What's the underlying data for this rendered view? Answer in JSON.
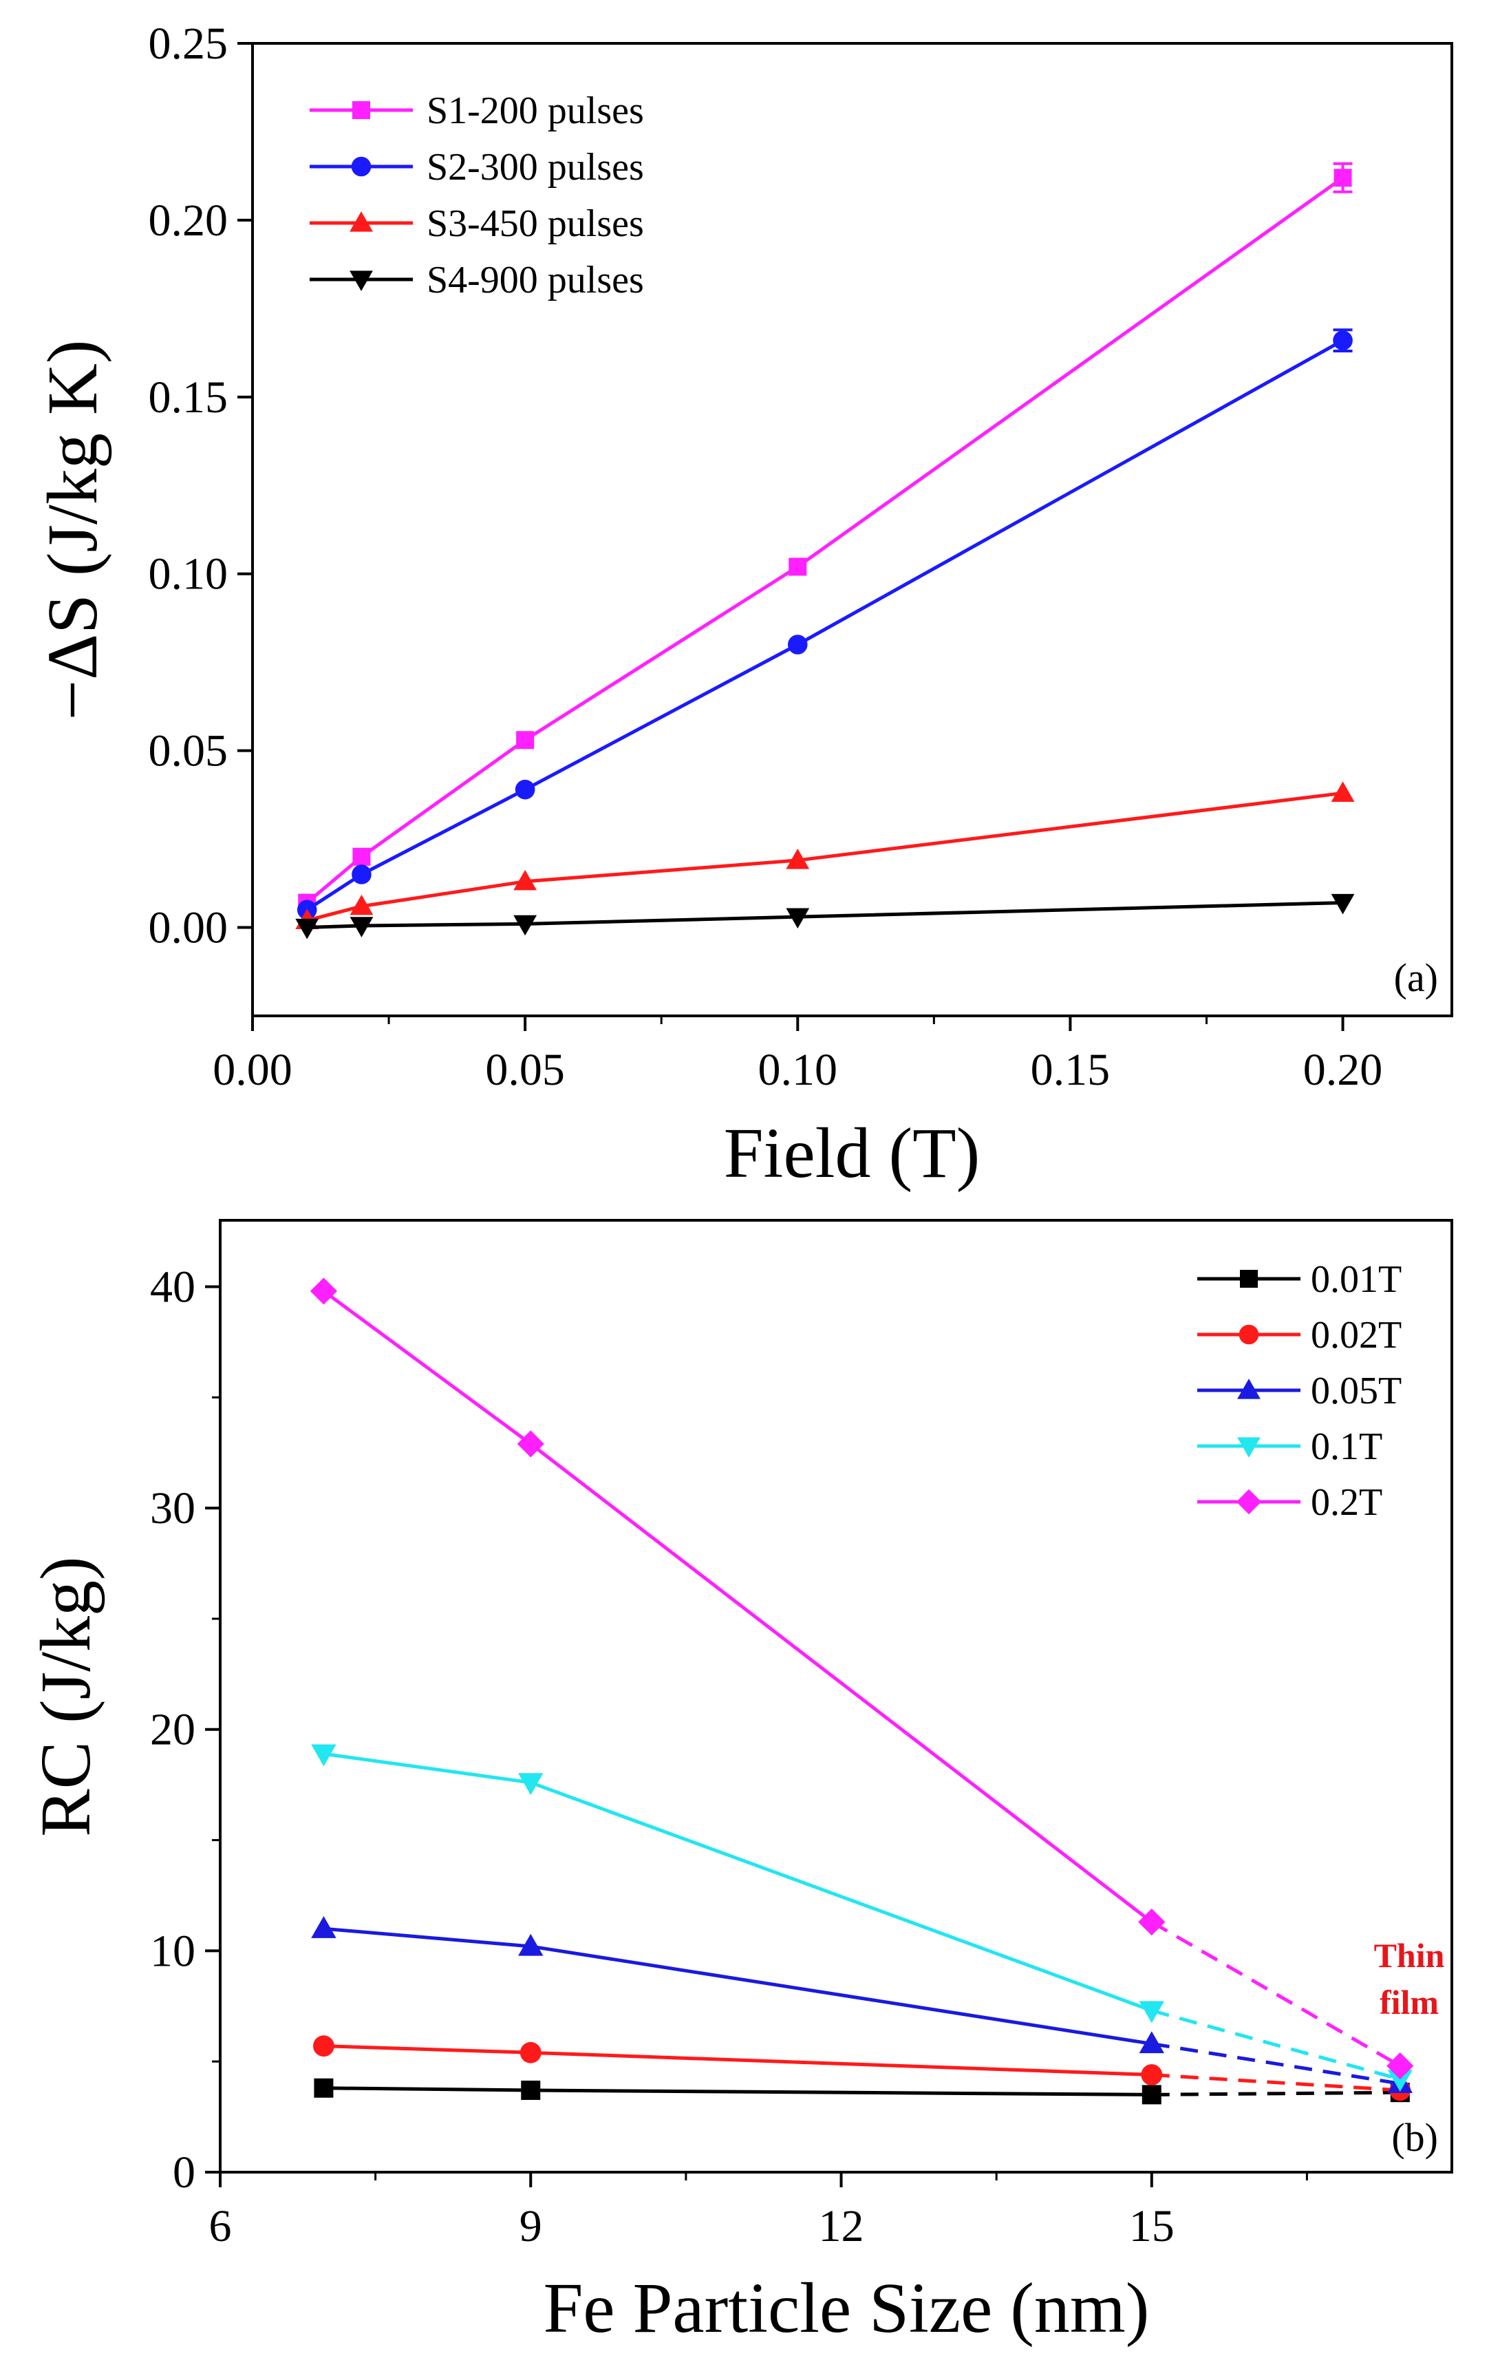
{
  "figure": {
    "panels": [
      "(a)",
      "(b)"
    ]
  },
  "chart_data": [
    {
      "type": "line",
      "panel_label": "(a)",
      "title": "",
      "xlabel": "Field (T)",
      "ylabel": "−ΔS (J/kg K)",
      "xlim": [
        0.0,
        0.22
      ],
      "ylim": [
        -0.025,
        0.25
      ],
      "xticks": [
        "0.00",
        "0.05",
        "0.10",
        "0.15",
        "0.20"
      ],
      "yticks": [
        "0.00",
        "0.05",
        "0.10",
        "0.15",
        "0.20",
        "0.25"
      ],
      "legend_position": "top-left",
      "x": [
        0.01,
        0.02,
        0.05,
        0.1,
        0.2
      ],
      "series": [
        {
          "name": "S1-200 pulses",
          "marker": "square",
          "color": "#ff20ff",
          "values": [
            0.007,
            0.02,
            0.053,
            0.102,
            0.212
          ],
          "error": [
            0,
            0,
            0,
            0,
            0.004
          ]
        },
        {
          "name": "S2-300 pulses",
          "marker": "circle",
          "color": "#1a1aff",
          "values": [
            0.005,
            0.015,
            0.039,
            0.08,
            0.166
          ],
          "error": [
            0,
            0,
            0,
            0,
            0.003
          ]
        },
        {
          "name": "S3-450 pulses",
          "marker": "triangle-up",
          "color": "#ff1a1a",
          "values": [
            0.002,
            0.006,
            0.013,
            0.019,
            0.038
          ],
          "error": [
            0,
            0,
            0,
            0,
            0
          ]
        },
        {
          "name": "S4-900 pulses",
          "marker": "triangle-down",
          "color": "#000000",
          "values": [
            0.0,
            0.0005,
            0.001,
            0.003,
            0.007
          ],
          "error": [
            0,
            0,
            0,
            0,
            0
          ]
        }
      ]
    },
    {
      "type": "line",
      "panel_label": "(b)",
      "title": "",
      "xlabel": "Fe Particle Size (nm)",
      "ylabel": "RC (J/kg)",
      "xlim": [
        6,
        17.9
      ],
      "ylim": [
        0,
        43
      ],
      "xticks": [
        "6",
        "9",
        "12",
        "15"
      ],
      "yticks": [
        "0",
        "10",
        "20",
        "30",
        "40"
      ],
      "legend_position": "top-right",
      "annotation": [
        "Thin",
        "film"
      ],
      "x": [
        7,
        9,
        15
      ],
      "x_thin_film": 17.4,
      "series": [
        {
          "name": "0.01T",
          "marker": "square",
          "color": "#000000",
          "values": [
            3.8,
            3.7,
            3.5
          ],
          "thin_film": 3.6
        },
        {
          "name": "0.02T",
          "marker": "circle",
          "color": "#ff1a1a",
          "values": [
            5.7,
            5.4,
            4.4
          ],
          "thin_film": 3.7
        },
        {
          "name": "0.05T",
          "marker": "triangle-up",
          "color": "#1a1ae0",
          "values": [
            11.0,
            10.2,
            5.8
          ],
          "thin_film": 4.0
        },
        {
          "name": "0.1T",
          "marker": "triangle-down",
          "color": "#22e6f0",
          "values": [
            18.9,
            17.6,
            7.3
          ],
          "thin_film": 4.2
        },
        {
          "name": "0.2T",
          "marker": "diamond",
          "color": "#ff20ff",
          "values": [
            39.8,
            32.9,
            11.3
          ],
          "thin_film": 4.8
        }
      ]
    }
  ]
}
